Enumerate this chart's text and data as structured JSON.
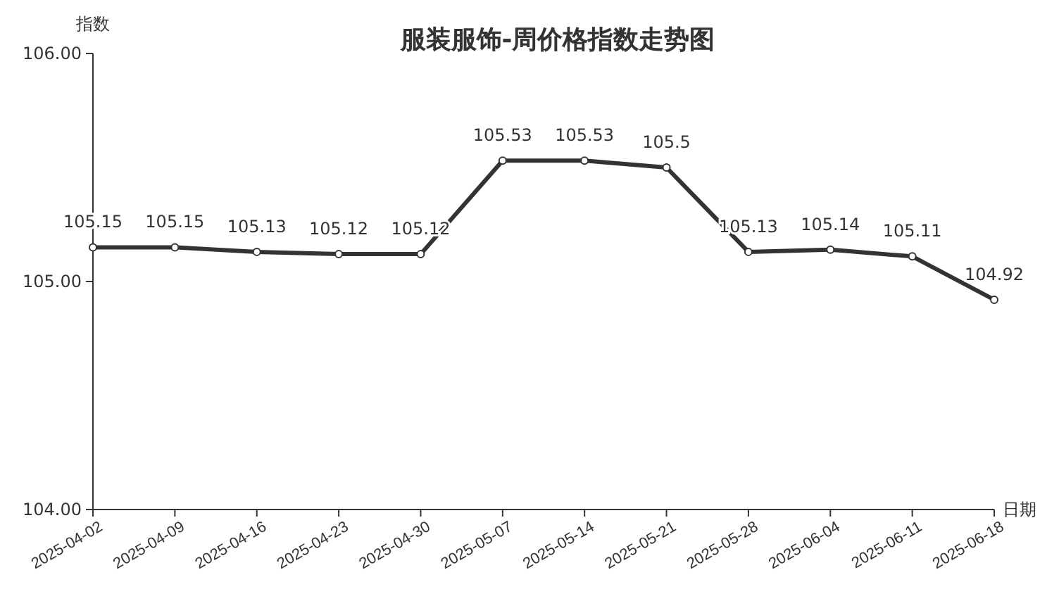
{
  "chart_data": {
    "type": "line",
    "title": "服装服饰-周价格指数走势图",
    "xlabel": "日期",
    "ylabel": "指数",
    "categories": [
      "2025-04-02",
      "2025-04-09",
      "2025-04-16",
      "2025-04-23",
      "2025-04-30",
      "2025-05-07",
      "2025-05-14",
      "2025-05-21",
      "2025-05-28",
      "2025-06-04",
      "2025-06-11",
      "2025-06-18"
    ],
    "series": [
      {
        "color": "#333333",
        "values": [
          105.15,
          105.15,
          105.13,
          105.12,
          105.12,
          105.53,
          105.53,
          105.5,
          105.13,
          105.14,
          105.11,
          104.92
        ]
      }
    ],
    "ylim": [
      104,
      106
    ],
    "yticks": [
      {
        "value": 104,
        "label": "104.00"
      },
      {
        "value": 105,
        "label": "105.00"
      },
      {
        "value": 106,
        "label": "106.00"
      }
    ],
    "data_labels": true,
    "marker": "circle",
    "line_style": "solid",
    "grid": false
  }
}
